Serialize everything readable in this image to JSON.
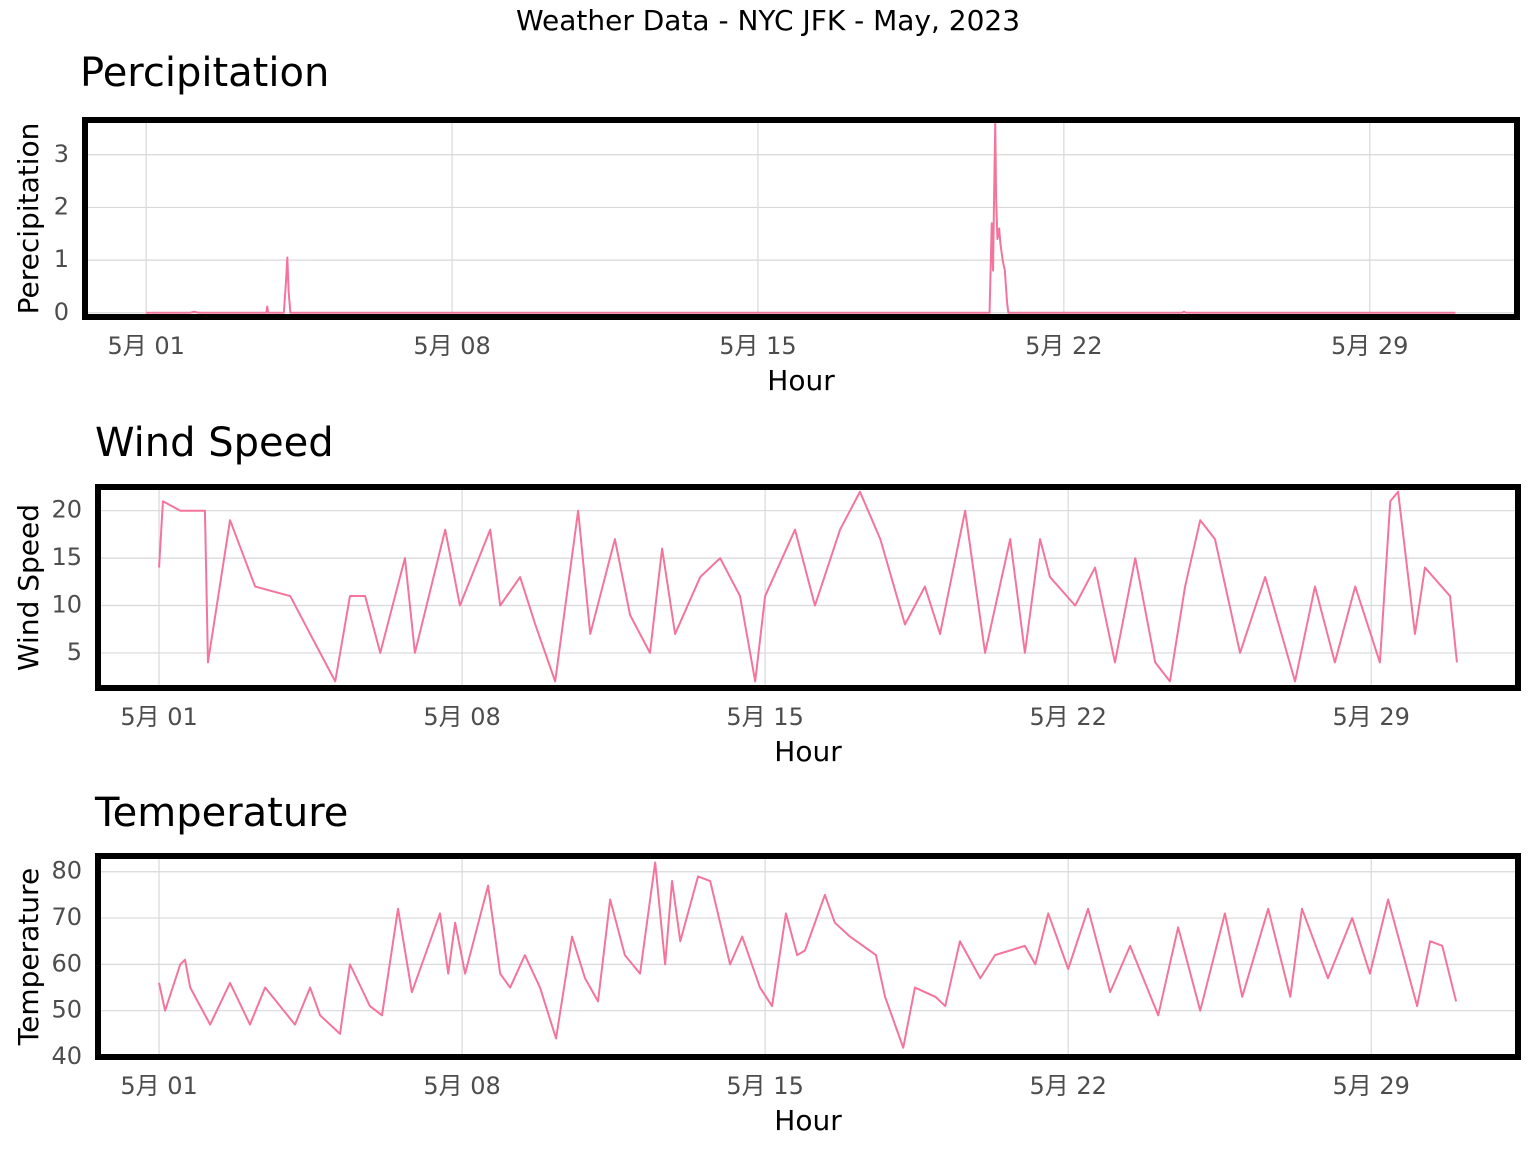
{
  "title": "Weather Data - NYC JFK - May, 2023",
  "chart_data": [
    {
      "type": "line",
      "title": "Percipitation",
      "x_label": "Hour",
      "y_label": "Perecipitation",
      "color": "#f4759c",
      "grid": true,
      "x": [
        1.0,
        2.0,
        2.1,
        2.2,
        3.75,
        3.77,
        3.79,
        4.15,
        4.2,
        4.23,
        4.26,
        4.3,
        20.3,
        20.35,
        20.38,
        20.4,
        20.43,
        20.45,
        20.48,
        20.52,
        20.55,
        20.6,
        20.65,
        20.7,
        20.73,
        24.7,
        24.75,
        24.8,
        30.96
      ],
      "values": [
        0,
        0,
        0.02,
        0,
        0,
        0.12,
        0,
        0,
        0.6,
        1.05,
        0.4,
        0,
        0,
        1.7,
        0.8,
        2.0,
        3.6,
        2.2,
        1.4,
        1.6,
        1.3,
        1.0,
        0.8,
        0.2,
        0,
        0,
        0.02,
        0,
        0
      ],
      "xlim": [
        -0.4,
        32.37
      ],
      "xticks": [
        {
          "value": 1,
          "label": "5月 01"
        },
        {
          "value": 8,
          "label": "5月 08"
        },
        {
          "value": 15,
          "label": "5月 15"
        },
        {
          "value": 22,
          "label": "5月 22"
        },
        {
          "value": 29,
          "label": "5月 29"
        }
      ],
      "ylim": [
        -0.08,
        3.66
      ],
      "yticks": [
        0,
        1,
        2,
        3
      ]
    },
    {
      "type": "line",
      "title": "Wind Speed",
      "x_label": "Hour",
      "y_label": "Wind Speed",
      "color": "#f4759c",
      "grid": true,
      "x": [
        1.0,
        1.09,
        1.49,
        2.06,
        2.13,
        2.64,
        3.22,
        4.03,
        4.49,
        5.07,
        5.41,
        5.76,
        6.11,
        6.68,
        6.91,
        7.61,
        7.95,
        8.65,
        8.88,
        9.34,
        9.69,
        10.15,
        10.68,
        10.96,
        11.53,
        11.88,
        12.34,
        12.62,
        12.92,
        13.5,
        13.96,
        14.42,
        14.77,
        15.0,
        15.69,
        16.15,
        16.73,
        17.19,
        17.66,
        18.23,
        18.69,
        19.04,
        19.62,
        20.08,
        20.66,
        21.0,
        21.35,
        21.58,
        22.16,
        22.62,
        23.08,
        23.55,
        24.01,
        24.35,
        24.7,
        25.05,
        25.39,
        25.97,
        26.55,
        27.24,
        27.7,
        28.16,
        28.63,
        29.2,
        29.44,
        29.62,
        30.01,
        30.24,
        30.82,
        30.98
      ],
      "values": [
        14,
        21,
        20,
        20,
        4,
        19,
        12,
        11,
        7,
        2,
        11,
        11,
        5,
        15,
        5,
        18,
        10,
        18,
        10,
        13,
        8,
        2,
        20,
        7,
        17,
        9,
        5,
        16,
        7,
        13,
        15,
        11,
        2,
        11,
        18,
        10,
        18,
        22,
        17,
        8,
        12,
        7,
        20,
        5,
        17,
        5,
        17,
        13,
        10,
        14,
        4,
        15,
        4,
        2,
        12,
        19,
        17,
        5,
        13,
        2,
        12,
        4,
        12,
        4,
        21,
        22,
        7,
        14,
        11,
        4
      ],
      "xlim": [
        -0.41,
        32.39
      ],
      "xticks": [
        {
          "value": 1,
          "label": "5月 01"
        },
        {
          "value": 8,
          "label": "5月 08"
        },
        {
          "value": 15,
          "label": "5月 15"
        },
        {
          "value": 22,
          "label": "5月 22"
        },
        {
          "value": 29,
          "label": "5月 29"
        }
      ],
      "ylim": [
        1.3,
        22.5
      ],
      "yticks": [
        5,
        10,
        15,
        20
      ]
    },
    {
      "type": "line",
      "title": "Temperature",
      "x_label": "Hour",
      "y_label": "Temperature",
      "color": "#f4759c",
      "grid": true,
      "x": [
        1.0,
        1.14,
        1.49,
        1.6,
        1.72,
        2.18,
        2.64,
        3.1,
        3.45,
        4.14,
        4.49,
        4.72,
        5.18,
        5.41,
        5.87,
        6.15,
        6.52,
        6.84,
        7.49,
        7.68,
        7.84,
        8.07,
        8.6,
        8.88,
        9.11,
        9.45,
        9.8,
        10.17,
        10.54,
        10.84,
        11.14,
        11.42,
        11.76,
        12.11,
        12.46,
        12.69,
        12.85,
        13.04,
        13.45,
        13.73,
        14.19,
        14.47,
        14.88,
        15.16,
        15.48,
        15.74,
        15.92,
        16.38,
        16.61,
        16.96,
        17.56,
        17.77,
        18.19,
        18.46,
        18.93,
        19.16,
        19.5,
        19.97,
        20.31,
        21.0,
        21.24,
        21.54,
        22.0,
        22.46,
        22.97,
        23.43,
        24.08,
        24.54,
        25.05,
        25.62,
        26.02,
        26.62,
        27.13,
        27.4,
        28.0,
        28.56,
        28.97,
        29.39,
        30.06,
        30.36,
        30.64,
        30.96
      ],
      "values": [
        56,
        50,
        60,
        61,
        55,
        47,
        56,
        47,
        55,
        47,
        55,
        49,
        45,
        60,
        51,
        49,
        72,
        54,
        71,
        58,
        69,
        58,
        77,
        58,
        55,
        62,
        55,
        44,
        66,
        57,
        52,
        74,
        62,
        58,
        82,
        60,
        78,
        65,
        79,
        78,
        60,
        66,
        55,
        51,
        71,
        62,
        63,
        75,
        69,
        66,
        62,
        53,
        42,
        55,
        53,
        51,
        65,
        57,
        62,
        64,
        60,
        71,
        59,
        72,
        54,
        64,
        49,
        68,
        50,
        71,
        53,
        72,
        53,
        72,
        57,
        70,
        58,
        74,
        51,
        65,
        64,
        52
      ],
      "xlim": [
        -0.41,
        32.39
      ],
      "xticks": [
        {
          "value": 1,
          "label": "5月 01"
        },
        {
          "value": 8,
          "label": "5月 08"
        },
        {
          "value": 15,
          "label": "5月 15"
        },
        {
          "value": 22,
          "label": "5月 22"
        },
        {
          "value": 29,
          "label": "5月 29"
        }
      ],
      "ylim": [
        40,
        83.4
      ],
      "yticks": [
        40,
        50,
        60,
        70,
        80
      ]
    }
  ]
}
